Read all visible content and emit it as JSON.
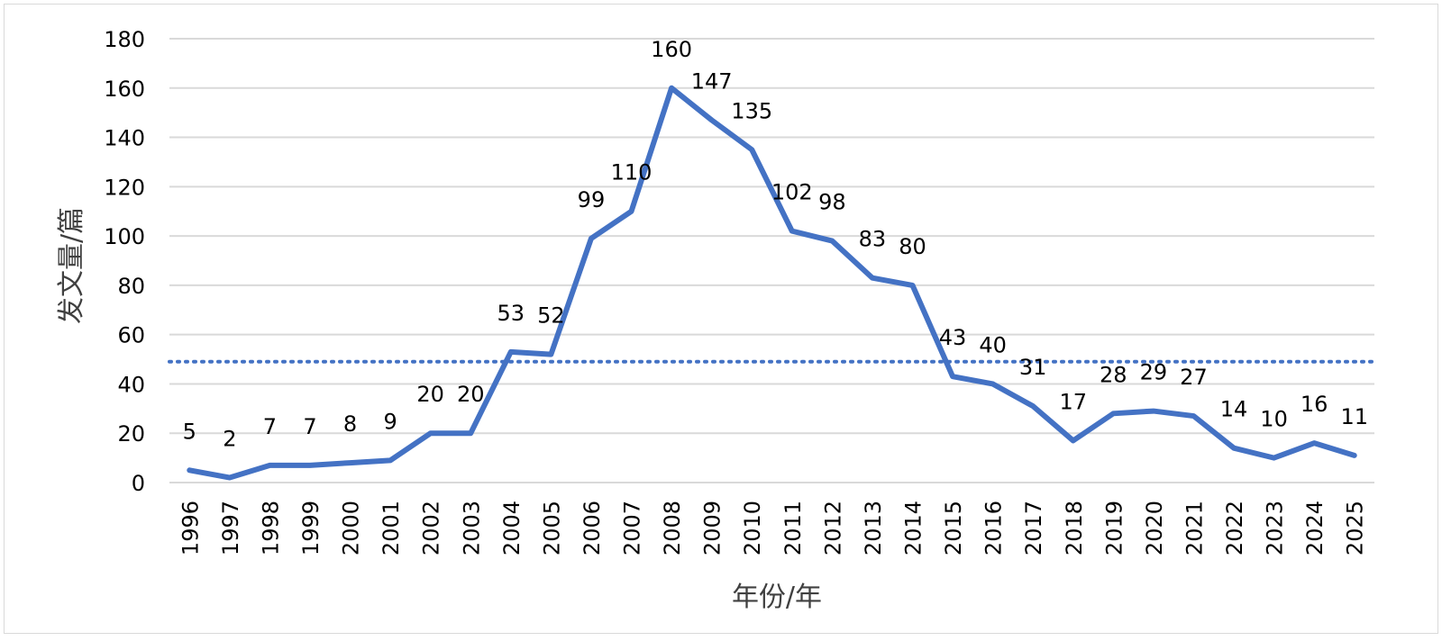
{
  "chart_data": {
    "type": "line",
    "title": "",
    "xlabel": "年份/年",
    "ylabel": "发文量/篇",
    "x": [
      "1996",
      "1997",
      "1998",
      "1999",
      "2000",
      "2001",
      "2002",
      "2003",
      "2004",
      "2005",
      "2006",
      "2007",
      "2008",
      "2009",
      "2010",
      "2011",
      "2012",
      "2013",
      "2014",
      "2015",
      "2016",
      "2017",
      "2018",
      "2019",
      "2020",
      "2021",
      "2022",
      "2023",
      "2024",
      "2025"
    ],
    "series": [
      {
        "values": [
          5,
          2,
          7,
          7,
          8,
          9,
          20,
          20,
          53,
          52,
          99,
          110,
          160,
          147,
          135,
          102,
          98,
          83,
          80,
          43,
          40,
          31,
          17,
          28,
          29,
          27,
          14,
          10,
          16,
          11
        ],
        "color": "#4472c4",
        "data_labels": true
      }
    ],
    "reference_line": {
      "value": 49,
      "style": "dotted",
      "color": "#4472c4"
    },
    "ylim": [
      0,
      180
    ],
    "yticks": [
      0,
      20,
      40,
      60,
      80,
      100,
      120,
      140,
      160,
      180
    ],
    "grid": "horizontal",
    "legend": "none"
  }
}
